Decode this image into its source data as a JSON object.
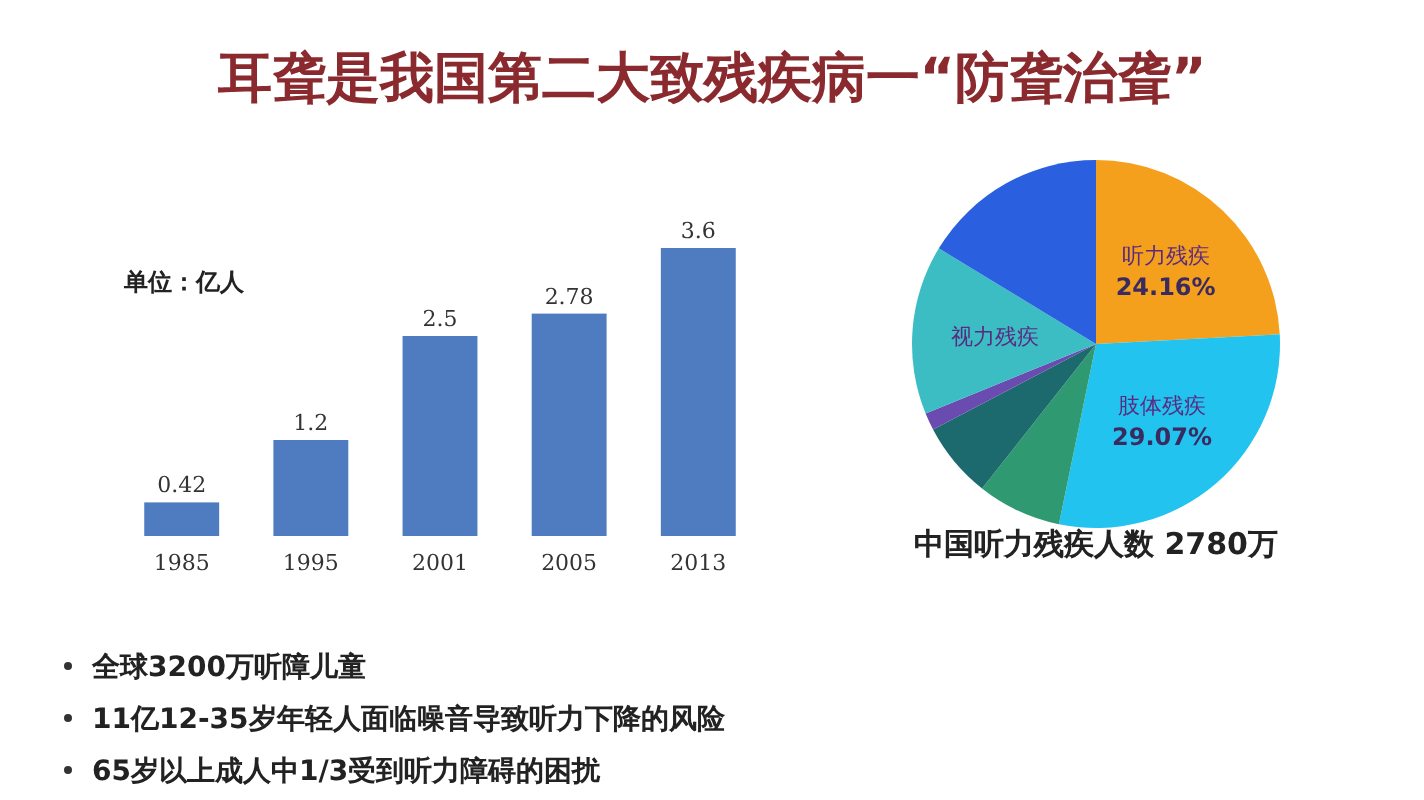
{
  "chart_data": [
    {
      "type": "bar",
      "title": "耳聋是我国第二大致残疾病一“防聋治聋”",
      "subtitle": "单位：亿人",
      "categories": [
        "1985",
        "1995",
        "2001",
        "2005",
        "2013"
      ],
      "values": [
        0.42,
        1.2,
        2.5,
        2.78,
        3.6
      ],
      "color": "#4f7cc0",
      "data_labels": true,
      "annotations": [
        "全球3200万听障儿童",
        "11亿12-35岁年轻人面临噪音导致听力下降的风险",
        "65岁以上成人中1/3受到听力障碍的困扰"
      ]
    },
    {
      "type": "pie",
      "title": "中国听力残疾人数 2780万",
      "categories": [
        "听力残疾",
        "肢体残疾",
        null,
        null,
        null,
        "视力残疾",
        null
      ],
      "values": [
        24.16,
        29.07,
        7.4,
        6.68,
        1.53,
        14.86,
        16.3
      ],
      "value_labels": [
        "24.16%",
        "29.07%",
        null,
        null,
        null,
        null,
        null
      ],
      "colors": [
        "#f5a01c",
        "#22c3ee",
        "#2f9a72",
        "#1d6a6e",
        "#6a4bb0",
        "#3cbdc4",
        "#2a5fe0"
      ]
    }
  ]
}
